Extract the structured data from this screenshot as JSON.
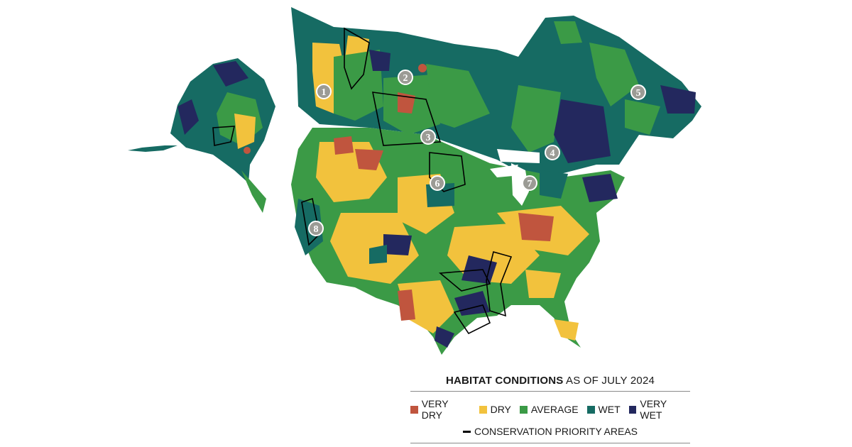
{
  "legend": {
    "title_bold": "HABITAT CONDITIONS",
    "title_rest": " AS OF JULY 2024",
    "categories": [
      {
        "label": "VERY DRY",
        "color": "#c0553e"
      },
      {
        "label": "DRY",
        "color": "#f2c23d"
      },
      {
        "label": "AVERAGE",
        "color": "#3b9a46"
      },
      {
        "label": "WET",
        "color": "#166b63"
      },
      {
        "label": "VERY WET",
        "color": "#23285e"
      }
    ],
    "priority_label": "CONSERVATION PRIORITY AREAS"
  },
  "markers": [
    "1",
    "2",
    "3",
    "4",
    "5",
    "6",
    "7",
    "8"
  ]
}
